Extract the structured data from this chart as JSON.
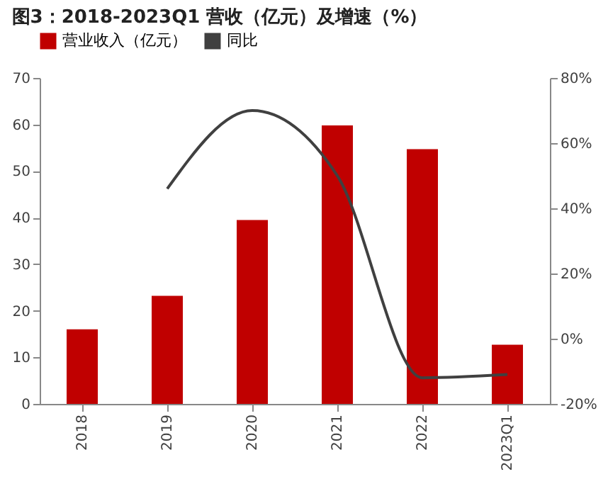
{
  "chart_data": {
    "type": "bar",
    "title": "图3：2018-2023Q1 营收（亿元）及增速（%）",
    "categories": [
      "2018",
      "2019",
      "2020",
      "2021",
      "2022",
      "2023Q1"
    ],
    "series": [
      {
        "name": "营业收入（亿元）",
        "color": "#c00000",
        "values": [
          16,
          23.2,
          39.5,
          59.8,
          54.7,
          12.7
        ]
      },
      {
        "name": "同比",
        "type": "line",
        "axis": "y2",
        "color": "#404040",
        "values": [
          null,
          46,
          70,
          50,
          -12,
          -11
        ]
      }
    ],
    "ylim": [
      0,
      70
    ],
    "yticks": [
      0,
      10,
      20,
      30,
      40,
      50,
      60,
      70
    ],
    "y2lim": [
      -20,
      80
    ],
    "y2ticks": [
      {
        "value": -20,
        "label": "-20%"
      },
      {
        "value": 0,
        "label": "0%"
      },
      {
        "value": 20,
        "label": "20%"
      },
      {
        "value": 40,
        "label": "40%"
      },
      {
        "value": 60,
        "label": "60%"
      },
      {
        "value": 80,
        "label": "80%"
      }
    ],
    "legend": "top",
    "grid": false
  }
}
